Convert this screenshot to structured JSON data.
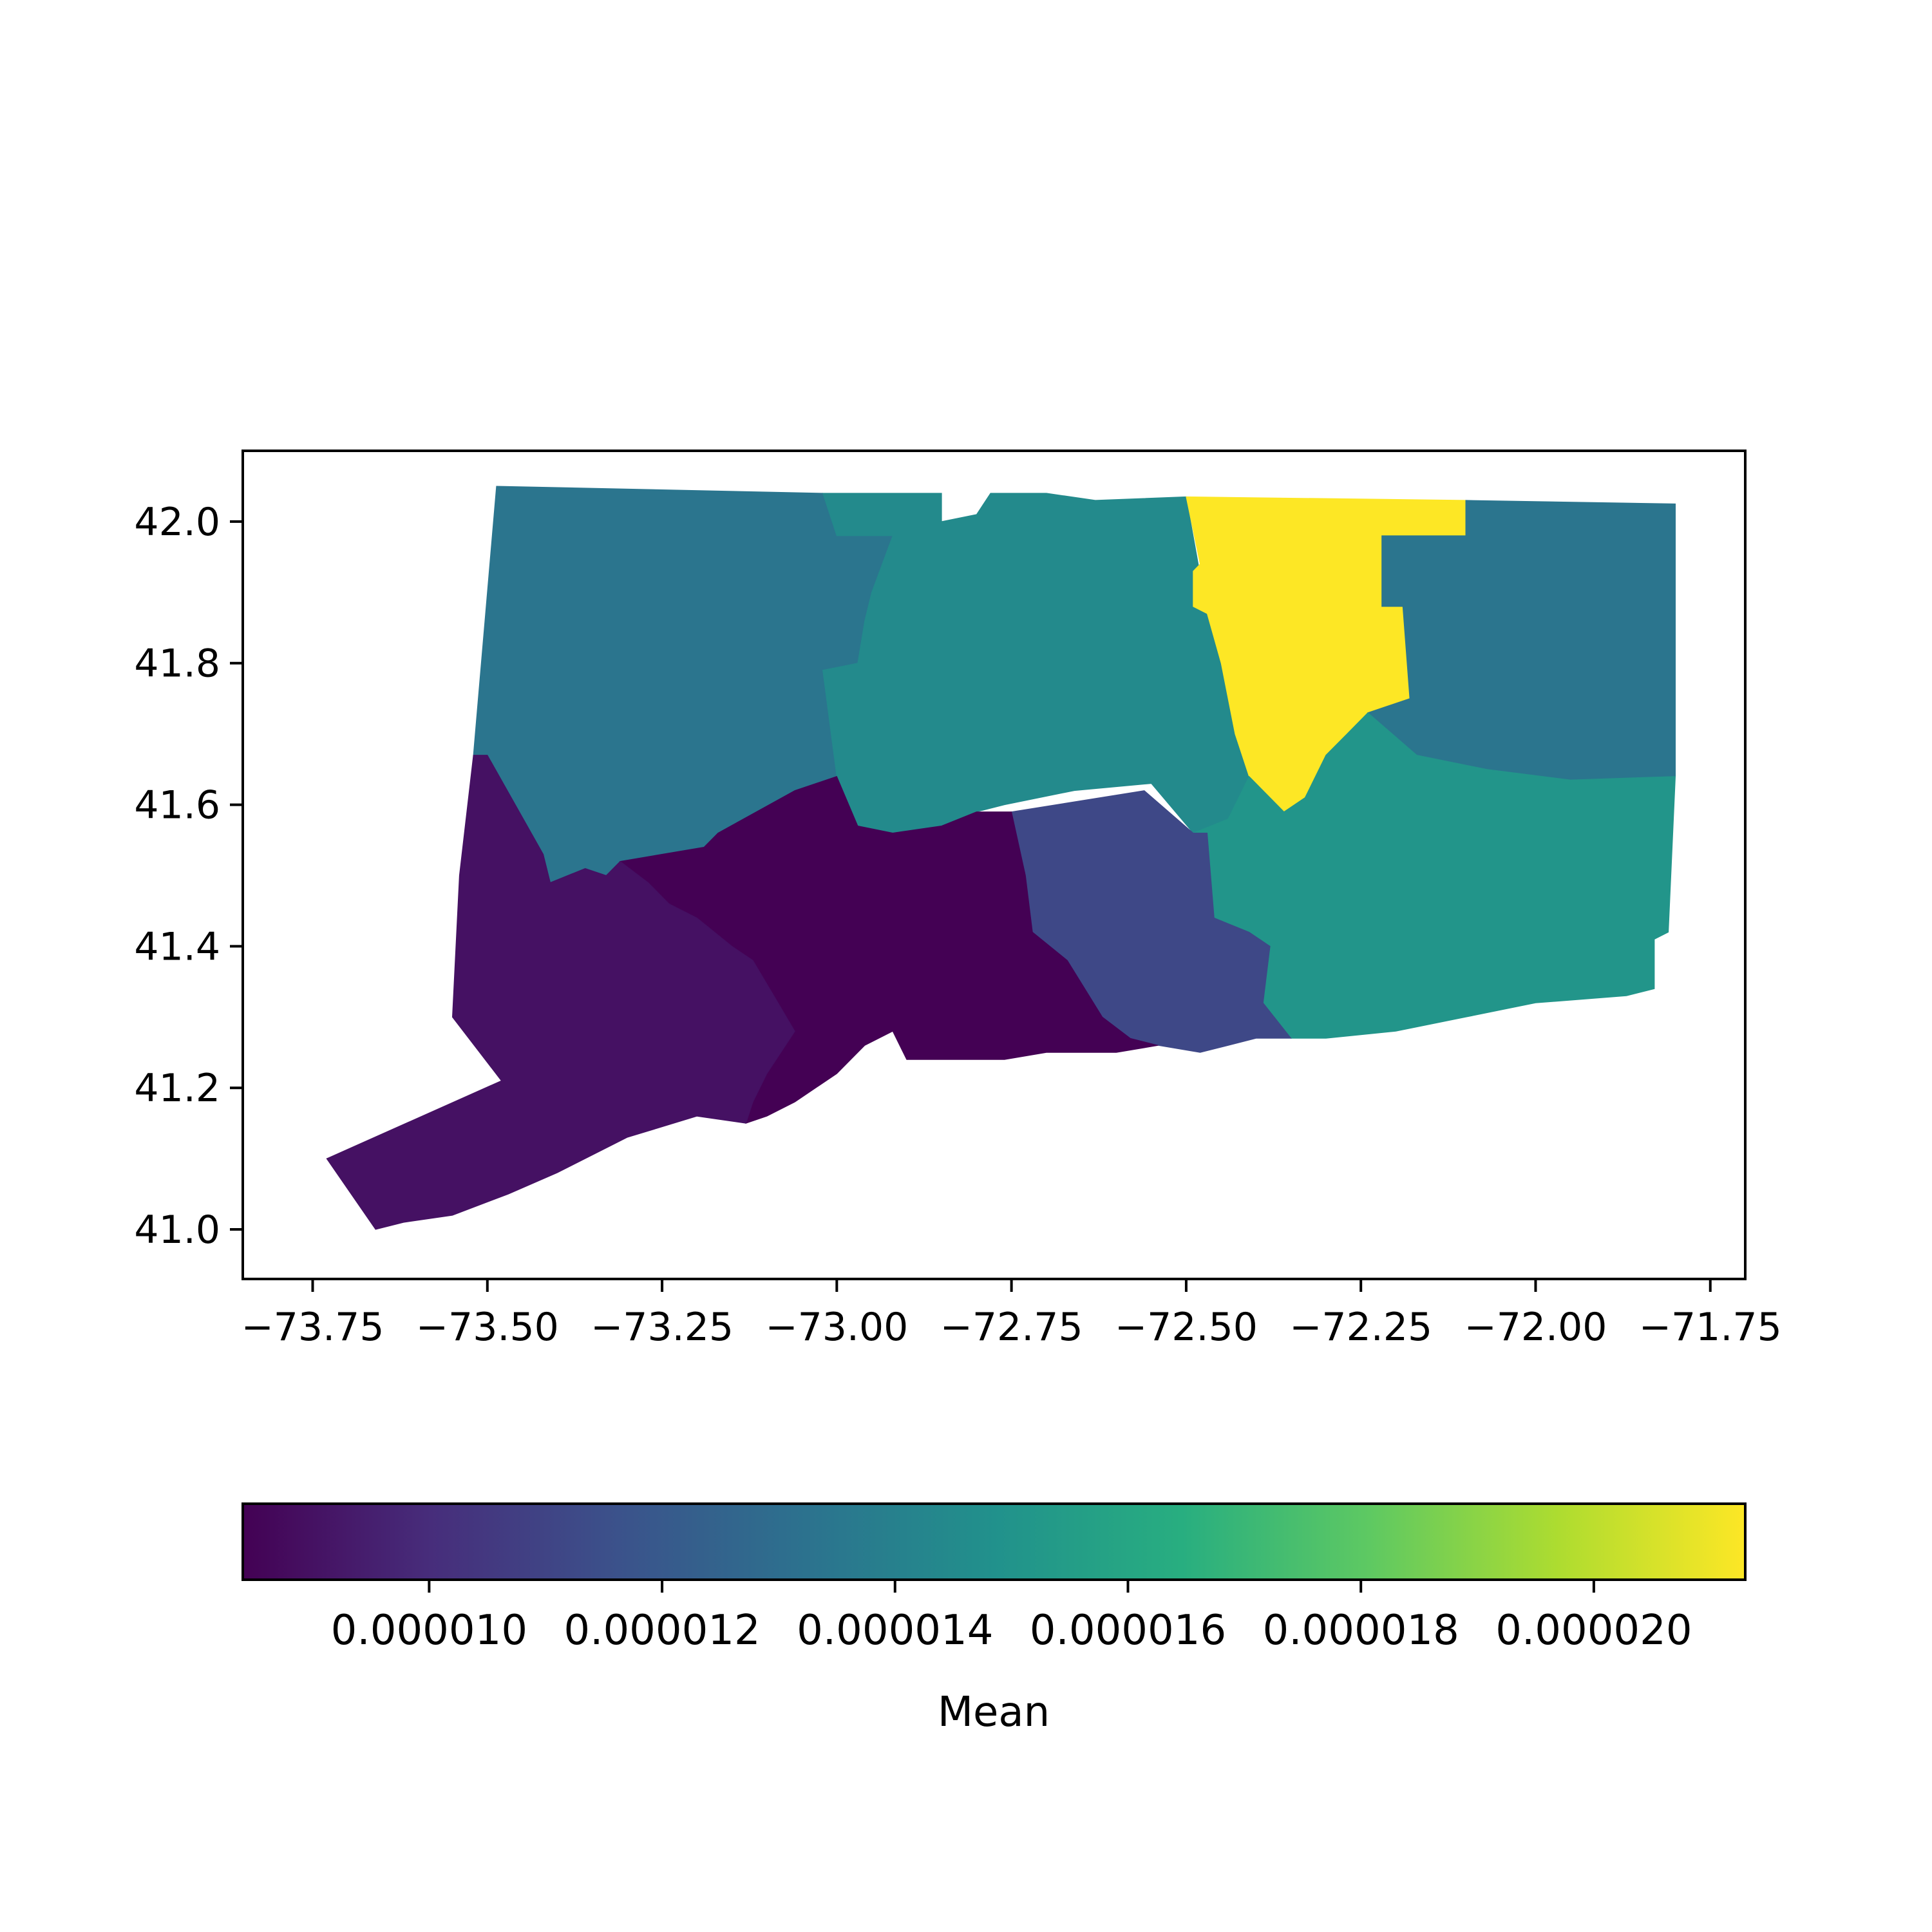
{
  "chart_data": {
    "type": "choropleth",
    "title": "",
    "xlabel": "",
    "ylabel": "",
    "xlim": [
      -73.85,
      -71.7
    ],
    "ylim": [
      40.93,
      42.1
    ],
    "x_ticks": [
      {
        "value": -73.75,
        "label": "−73.75"
      },
      {
        "value": -73.5,
        "label": "−73.50"
      },
      {
        "value": -73.25,
        "label": "−73.25"
      },
      {
        "value": -73.0,
        "label": "−73.00"
      },
      {
        "value": -72.75,
        "label": "−72.75"
      },
      {
        "value": -72.5,
        "label": "−72.50"
      },
      {
        "value": -72.25,
        "label": "−72.25"
      },
      {
        "value": -72.0,
        "label": "−72.00"
      },
      {
        "value": -71.75,
        "label": "−71.75"
      }
    ],
    "y_ticks": [
      {
        "value": 41.0,
        "label": "41.0"
      },
      {
        "value": 41.2,
        "label": "41.2"
      },
      {
        "value": 41.4,
        "label": "41.4"
      },
      {
        "value": 41.6,
        "label": "41.6"
      },
      {
        "value": 41.8,
        "label": "41.8"
      },
      {
        "value": 42.0,
        "label": "42.0"
      }
    ],
    "colormap": "viridis",
    "colorbar": {
      "label": "Mean",
      "orientation": "horizontal",
      "placement": "bottom",
      "range": [
        8.4e-06,
        2.13e-05
      ],
      "ticks": [
        {
          "value": 1e-05,
          "label": "0.000010"
        },
        {
          "value": 1.2e-05,
          "label": "0.000012"
        },
        {
          "value": 1.4e-05,
          "label": "0.000014"
        },
        {
          "value": 1.6e-05,
          "label": "0.000016"
        },
        {
          "value": 1.8e-05,
          "label": "0.000018"
        },
        {
          "value": 2e-05,
          "label": "0.000020"
        }
      ]
    },
    "regions": [
      {
        "id": "litchfield",
        "value": 1.34e-05,
        "coords": [
          [
            -73.487,
            42.05
          ],
          [
            -73.02,
            42.04
          ],
          [
            -73.0,
            41.98
          ],
          [
            -72.92,
            41.98
          ],
          [
            -72.95,
            41.9
          ],
          [
            -72.96,
            41.86
          ],
          [
            -72.97,
            41.8
          ],
          [
            -73.02,
            41.79
          ],
          [
            -73.0,
            41.64
          ],
          [
            -73.06,
            41.62
          ],
          [
            -73.17,
            41.56
          ],
          [
            -73.19,
            41.54
          ],
          [
            -73.31,
            41.52
          ],
          [
            -73.33,
            41.5
          ],
          [
            -73.36,
            41.51
          ],
          [
            -73.41,
            41.49
          ],
          [
            -73.42,
            41.53
          ],
          [
            -73.5,
            41.67
          ],
          [
            -73.505,
            41.67
          ],
          [
            -73.52,
            41.67
          ]
        ]
      },
      {
        "id": "hartford",
        "value": 1.45e-05,
        "coords": [
          [
            -73.02,
            42.04
          ],
          [
            -72.85,
            42.04
          ],
          [
            -72.85,
            42.0
          ],
          [
            -72.8,
            42.01
          ],
          [
            -72.78,
            42.04
          ],
          [
            -72.7,
            42.04
          ],
          [
            -72.63,
            42.03
          ],
          [
            -72.5,
            42.035
          ],
          [
            -72.47,
            41.87
          ],
          [
            -72.45,
            41.8
          ],
          [
            -72.43,
            41.7
          ],
          [
            -72.41,
            41.64
          ],
          [
            -72.44,
            41.58
          ],
          [
            -72.49,
            41.56
          ],
          [
            -72.55,
            41.63
          ],
          [
            -72.66,
            41.62
          ],
          [
            -72.76,
            41.6
          ],
          [
            -72.8,
            41.59
          ],
          [
            -72.85,
            41.57
          ],
          [
            -72.92,
            41.56
          ],
          [
            -72.97,
            41.57
          ],
          [
            -73.0,
            41.64
          ],
          [
            -73.02,
            41.79
          ],
          [
            -72.97,
            41.8
          ],
          [
            -72.96,
            41.86
          ],
          [
            -72.95,
            41.9
          ],
          [
            -72.92,
            41.98
          ],
          [
            -73.0,
            41.98
          ]
        ]
      },
      {
        "id": "tolland",
        "value": 2.13e-05,
        "coords": [
          [
            -72.5,
            42.035
          ],
          [
            -72.1,
            42.03
          ],
          [
            -72.1,
            41.98
          ],
          [
            -72.22,
            41.98
          ],
          [
            -72.22,
            41.88
          ],
          [
            -72.19,
            41.88
          ],
          [
            -72.18,
            41.75
          ],
          [
            -72.24,
            41.73
          ],
          [
            -72.27,
            41.7
          ],
          [
            -72.3,
            41.67
          ],
          [
            -72.33,
            41.61
          ],
          [
            -72.36,
            41.59
          ],
          [
            -72.4,
            41.6
          ],
          [
            -72.41,
            41.64
          ],
          [
            -72.43,
            41.7
          ],
          [
            -72.45,
            41.8
          ],
          [
            -72.47,
            41.87
          ],
          [
            -72.49,
            41.88
          ],
          [
            -72.49,
            41.93
          ],
          [
            -72.48,
            41.94
          ],
          [
            -72.5,
            42.035
          ]
        ]
      },
      {
        "id": "windham",
        "value": 1.34e-05,
        "coords": [
          [
            -72.1,
            42.03
          ],
          [
            -71.8,
            42.025
          ],
          [
            -71.8,
            41.64
          ],
          [
            -71.95,
            41.635
          ],
          [
            -72.07,
            41.65
          ],
          [
            -72.17,
            41.67
          ],
          [
            -72.24,
            41.73
          ],
          [
            -72.18,
            41.75
          ],
          [
            -72.19,
            41.88
          ],
          [
            -72.22,
            41.88
          ],
          [
            -72.22,
            41.98
          ],
          [
            -72.1,
            41.98
          ]
        ]
      },
      {
        "id": "new-london",
        "value": 1.51e-05,
        "coords": [
          [
            -72.27,
            41.7
          ],
          [
            -72.24,
            41.73
          ],
          [
            -72.17,
            41.67
          ],
          [
            -72.07,
            41.65
          ],
          [
            -71.95,
            41.635
          ],
          [
            -71.8,
            41.64
          ],
          [
            -71.81,
            41.42
          ],
          [
            -71.83,
            41.41
          ],
          [
            -71.83,
            41.34
          ],
          [
            -71.87,
            41.33
          ],
          [
            -72.0,
            41.32
          ],
          [
            -72.1,
            41.3
          ],
          [
            -72.2,
            41.28
          ],
          [
            -72.3,
            41.27
          ],
          [
            -72.35,
            41.27
          ],
          [
            -72.39,
            41.32
          ],
          [
            -72.38,
            41.4
          ],
          [
            -72.41,
            41.42
          ],
          [
            -72.46,
            41.44
          ],
          [
            -72.47,
            41.56
          ],
          [
            -72.49,
            41.56
          ],
          [
            -72.44,
            41.58
          ],
          [
            -72.41,
            41.64
          ],
          [
            -72.36,
            41.59
          ],
          [
            -72.33,
            41.61
          ],
          [
            -72.3,
            41.67
          ]
        ]
      },
      {
        "id": "middlesex",
        "value": 1.12e-05,
        "coords": [
          [
            -72.75,
            41.59
          ],
          [
            -72.56,
            41.62
          ],
          [
            -72.49,
            41.56
          ],
          [
            -72.47,
            41.56
          ],
          [
            -72.46,
            41.44
          ],
          [
            -72.41,
            41.42
          ],
          [
            -72.38,
            41.4
          ],
          [
            -72.39,
            41.32
          ],
          [
            -72.35,
            41.27
          ],
          [
            -72.4,
            41.27
          ],
          [
            -72.48,
            41.25
          ],
          [
            -72.54,
            41.26
          ],
          [
            -72.58,
            41.27
          ],
          [
            -72.62,
            41.3
          ],
          [
            -72.67,
            41.38
          ],
          [
            -72.72,
            41.42
          ],
          [
            -72.73,
            41.5
          ]
        ]
      },
      {
        "id": "new-haven",
        "value": 8.4e-06,
        "coords": [
          [
            -73.0,
            41.64
          ],
          [
            -72.97,
            41.57
          ],
          [
            -72.92,
            41.56
          ],
          [
            -72.85,
            41.57
          ],
          [
            -72.8,
            41.59
          ],
          [
            -72.75,
            41.59
          ],
          [
            -72.73,
            41.5
          ],
          [
            -72.72,
            41.42
          ],
          [
            -72.67,
            41.38
          ],
          [
            -72.62,
            41.3
          ],
          [
            -72.58,
            41.27
          ],
          [
            -72.54,
            41.26
          ],
          [
            -72.6,
            41.25
          ],
          [
            -72.7,
            41.25
          ],
          [
            -72.76,
            41.24
          ],
          [
            -72.84,
            41.24
          ],
          [
            -72.9,
            41.24
          ],
          [
            -72.92,
            41.28
          ],
          [
            -72.96,
            41.26
          ],
          [
            -73.0,
            41.22
          ],
          [
            -73.06,
            41.18
          ],
          [
            -73.1,
            41.16
          ],
          [
            -73.13,
            41.15
          ],
          [
            -73.12,
            41.18
          ],
          [
            -73.1,
            41.22
          ],
          [
            -73.06,
            41.28
          ],
          [
            -73.09,
            41.33
          ],
          [
            -73.12,
            41.38
          ],
          [
            -73.15,
            41.4
          ],
          [
            -73.2,
            41.44
          ],
          [
            -73.24,
            41.46
          ],
          [
            -73.27,
            41.49
          ],
          [
            -73.31,
            41.52
          ],
          [
            -73.19,
            41.54
          ],
          [
            -73.17,
            41.56
          ],
          [
            -73.06,
            41.62
          ]
        ]
      },
      {
        "id": "fairfield",
        "value": 9e-06,
        "coords": [
          [
            -73.52,
            41.67
          ],
          [
            -73.54,
            41.5
          ],
          [
            -73.55,
            41.3
          ],
          [
            -73.48,
            41.21
          ],
          [
            -73.73,
            41.1
          ],
          [
            -73.66,
            41.0
          ],
          [
            -73.62,
            41.01
          ],
          [
            -73.55,
            41.02
          ],
          [
            -73.47,
            41.05
          ],
          [
            -73.4,
            41.08
          ],
          [
            -73.3,
            41.13
          ],
          [
            -73.2,
            41.16
          ],
          [
            -73.13,
            41.15
          ],
          [
            -73.12,
            41.18
          ],
          [
            -73.1,
            41.22
          ],
          [
            -73.06,
            41.28
          ],
          [
            -73.09,
            41.33
          ],
          [
            -73.12,
            41.38
          ],
          [
            -73.15,
            41.4
          ],
          [
            -73.2,
            41.44
          ],
          [
            -73.24,
            41.46
          ],
          [
            -73.27,
            41.49
          ],
          [
            -73.31,
            41.52
          ],
          [
            -73.33,
            41.5
          ],
          [
            -73.36,
            41.51
          ],
          [
            -73.41,
            41.49
          ],
          [
            -73.42,
            41.53
          ],
          [
            -73.5,
            41.67
          ]
        ]
      }
    ]
  }
}
